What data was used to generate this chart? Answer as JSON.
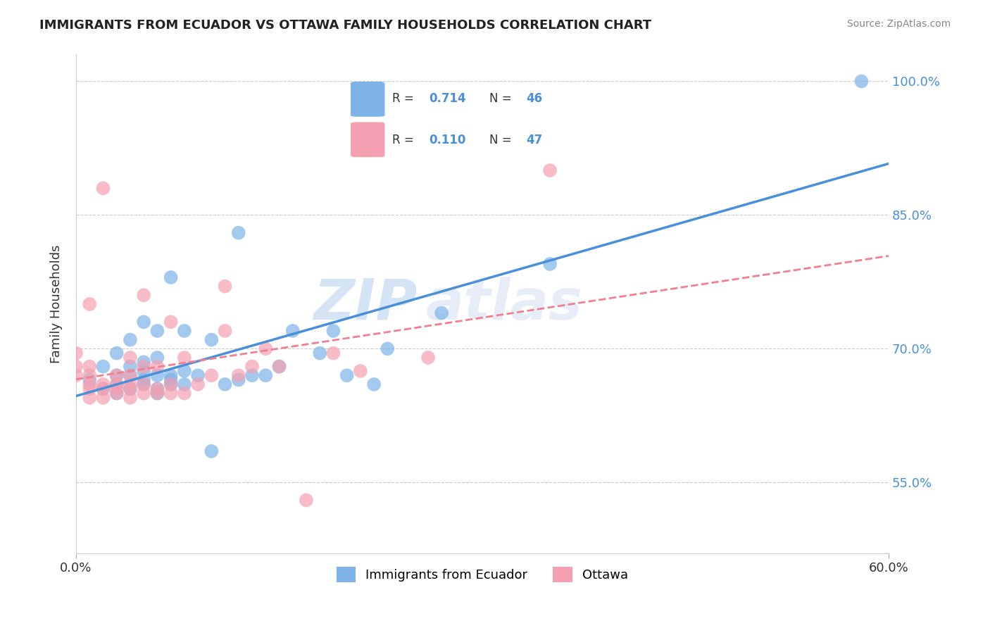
{
  "title": "IMMIGRANTS FROM ECUADOR VS OTTAWA FAMILY HOUSEHOLDS CORRELATION CHART",
  "source": "Source: ZipAtlas.com",
  "xlabel_blue": "Immigrants from Ecuador",
  "xlabel_pink": "Ottawa",
  "ylabel": "Family Households",
  "xmin": 0.0,
  "xmax": 0.6,
  "ymin": 0.47,
  "ymax": 1.03,
  "yticks": [
    0.55,
    0.7,
    0.85,
    1.0
  ],
  "ytick_labels": [
    "55.0%",
    "70.0%",
    "85.0%",
    "100.0%"
  ],
  "legend_blue_r": "0.714",
  "legend_blue_n": "46",
  "legend_pink_r": "0.110",
  "legend_pink_n": "47",
  "blue_color": "#7EB3E8",
  "pink_color": "#F4A0B0",
  "blue_line_color": "#4A90D9",
  "pink_line_color": "#F08090",
  "watermark_zip": "ZIP",
  "watermark_atlas": "atlas",
  "blue_dots_x": [
    0.01,
    0.02,
    0.02,
    0.03,
    0.03,
    0.03,
    0.03,
    0.04,
    0.04,
    0.04,
    0.04,
    0.05,
    0.05,
    0.05,
    0.05,
    0.05,
    0.06,
    0.06,
    0.06,
    0.06,
    0.06,
    0.07,
    0.07,
    0.07,
    0.07,
    0.08,
    0.08,
    0.08,
    0.09,
    0.1,
    0.1,
    0.11,
    0.12,
    0.12,
    0.13,
    0.14,
    0.15,
    0.16,
    0.18,
    0.19,
    0.2,
    0.22,
    0.23,
    0.27,
    0.35,
    0.58
  ],
  "blue_dots_y": [
    0.665,
    0.655,
    0.68,
    0.65,
    0.66,
    0.67,
    0.695,
    0.655,
    0.67,
    0.68,
    0.71,
    0.66,
    0.665,
    0.675,
    0.685,
    0.73,
    0.65,
    0.655,
    0.67,
    0.69,
    0.72,
    0.66,
    0.665,
    0.67,
    0.78,
    0.66,
    0.675,
    0.72,
    0.67,
    0.585,
    0.71,
    0.66,
    0.665,
    0.83,
    0.67,
    0.67,
    0.68,
    0.72,
    0.695,
    0.72,
    0.67,
    0.66,
    0.7,
    0.74,
    0.795,
    1.0
  ],
  "pink_dots_x": [
    0.0,
    0.0,
    0.0,
    0.01,
    0.01,
    0.01,
    0.01,
    0.01,
    0.01,
    0.02,
    0.02,
    0.02,
    0.02,
    0.03,
    0.03,
    0.03,
    0.03,
    0.04,
    0.04,
    0.04,
    0.04,
    0.04,
    0.05,
    0.05,
    0.05,
    0.05,
    0.06,
    0.06,
    0.06,
    0.07,
    0.07,
    0.07,
    0.08,
    0.08,
    0.09,
    0.1,
    0.11,
    0.11,
    0.12,
    0.13,
    0.14,
    0.15,
    0.17,
    0.19,
    0.21,
    0.26,
    0.35
  ],
  "pink_dots_y": [
    0.67,
    0.68,
    0.695,
    0.645,
    0.655,
    0.66,
    0.67,
    0.68,
    0.75,
    0.645,
    0.655,
    0.66,
    0.88,
    0.65,
    0.655,
    0.66,
    0.67,
    0.645,
    0.655,
    0.66,
    0.67,
    0.69,
    0.65,
    0.66,
    0.68,
    0.76,
    0.65,
    0.655,
    0.68,
    0.65,
    0.66,
    0.73,
    0.65,
    0.69,
    0.66,
    0.67,
    0.72,
    0.77,
    0.67,
    0.68,
    0.7,
    0.68,
    0.53,
    0.695,
    0.675,
    0.69,
    0.9
  ]
}
